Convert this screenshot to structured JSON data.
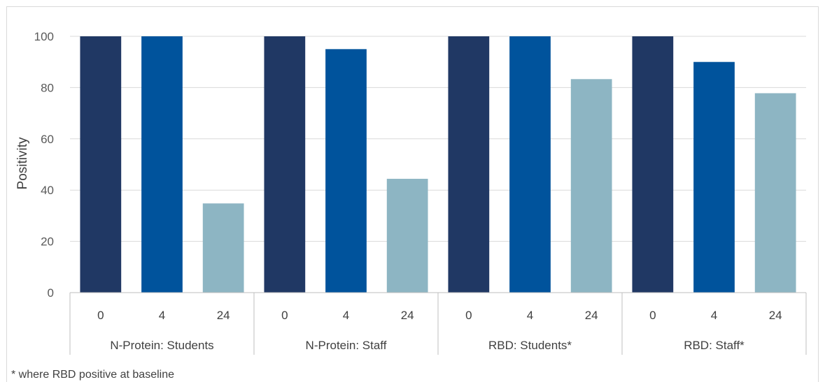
{
  "chart_data": {
    "type": "bar",
    "ylabel": "Positivity",
    "ylim": [
      0,
      100
    ],
    "yticks": [
      0,
      20,
      40,
      60,
      80,
      100
    ],
    "gridlines": true,
    "legend": "none",
    "groups": [
      {
        "label": "N-Protein: Students",
        "categories": [
          "0",
          "4",
          "24"
        ],
        "values": [
          100,
          100,
          34.8
        ]
      },
      {
        "label": "N-Protein: Staff",
        "categories": [
          "0",
          "4",
          "24"
        ],
        "values": [
          100,
          95,
          44.4
        ]
      },
      {
        "label": "RBD: Students*",
        "categories": [
          "0",
          "4",
          "24"
        ],
        "values": [
          100,
          100,
          83.3
        ]
      },
      {
        "label": "RBD: Staff*",
        "categories": [
          "0",
          "4",
          "24"
        ],
        "values": [
          100,
          90,
          77.8
        ]
      }
    ],
    "colors": [
      "#203864",
      "#00539c",
      "#8db5c3"
    ],
    "footnote": "* where RBD positive at baseline"
  }
}
